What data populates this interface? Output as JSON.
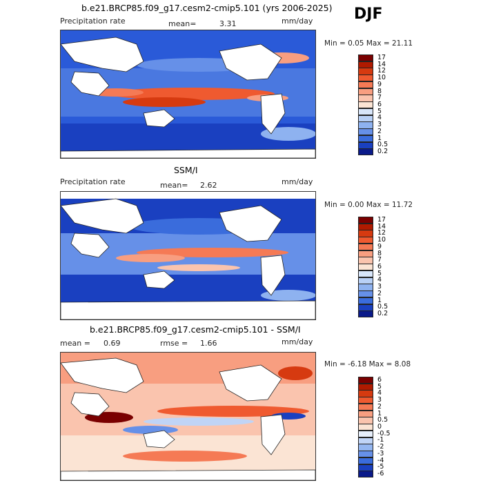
{
  "season": "DJF",
  "panels": [
    {
      "title": "b.e21.BRCP85.f09_g17.cesm2-cmip5.101 (yrs 2006-2025)",
      "left_label": "Precipitation rate",
      "stat_label": "mean=",
      "stat_value": "3.31",
      "units": "mm/day",
      "minmax": "Min =   0.05 Max =  21.11",
      "legend_labels": [
        "17",
        "14",
        "12",
        "10",
        "9",
        "8",
        "7",
        "6",
        "5",
        "4",
        "3",
        "2",
        "1",
        "0.5",
        "0.2"
      ],
      "legend_colors": [
        "#7a0000",
        "#b01a00",
        "#d63a10",
        "#ef5a30",
        "#f57a55",
        "#f89e80",
        "#fac4ae",
        "#fbe4d4",
        "#d8e6fa",
        "#b8d0f6",
        "#8eb2f0",
        "#6690e8",
        "#3a6cdc",
        "#1a40c0",
        "#0a1a8a"
      ]
    },
    {
      "title": "SSM/I",
      "left_label": "Precipitation rate",
      "stat_label": "mean=",
      "stat_value": "2.62",
      "units": "mm/day",
      "minmax": "Min =   0.00 Max =  11.72",
      "legend_labels": [
        "17",
        "14",
        "12",
        "10",
        "9",
        "8",
        "7",
        "6",
        "5",
        "4",
        "3",
        "2",
        "1",
        "0.5",
        "0.2"
      ],
      "legend_colors": [
        "#7a0000",
        "#b01a00",
        "#d63a10",
        "#ef5a30",
        "#f57a55",
        "#f89e80",
        "#fac4ae",
        "#fbe4d4",
        "#d8e6fa",
        "#b8d0f6",
        "#8eb2f0",
        "#6690e8",
        "#3a6cdc",
        "#1a40c0",
        "#0a1a8a"
      ]
    },
    {
      "title": "b.e21.BRCP85.f09_g17.cesm2-cmip5.101 - SSM/I",
      "left_label": "mean =",
      "left_value": "0.69",
      "stat_label": "rmse =",
      "stat_value": "1.66",
      "units": "mm/day",
      "minmax": "Min =  -6.18 Max =   8.08",
      "legend_labels": [
        "6",
        "5",
        "4",
        "3",
        "2",
        "1",
        "0.5",
        "0",
        "-0.5",
        "-1",
        "-2",
        "-3",
        "-4",
        "-5",
        "-6"
      ],
      "legend_colors": [
        "#7a0000",
        "#b01a00",
        "#d63a10",
        "#ef5a30",
        "#f57a55",
        "#f89e80",
        "#fac4ae",
        "#fbe4d4",
        "#e6eefa",
        "#c0d4f6",
        "#94b6f0",
        "#6690e8",
        "#3a6cdc",
        "#1a40c0",
        "#0a1a8a"
      ]
    }
  ]
}
